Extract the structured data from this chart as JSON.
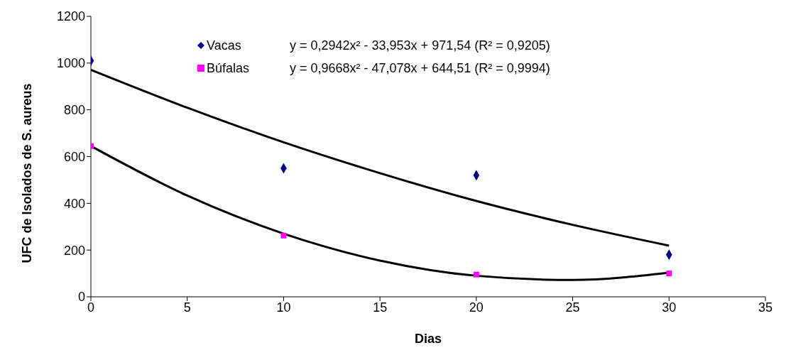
{
  "chart_data": {
    "type": "scatter",
    "xlabel": "Dias",
    "ylabel": "UFC de Isolados de S. aureus",
    "xlim": [
      0,
      35
    ],
    "xticks": [
      0,
      5,
      10,
      15,
      20,
      25,
      30,
      35
    ],
    "ylim": [
      0,
      1200
    ],
    "yticks": [
      0,
      200,
      400,
      600,
      800,
      1000,
      1200
    ],
    "legend": "top",
    "annotations": [
      "y = 0,2942x² - 33,953x + 971,54 (R² = 0,9205)",
      "y = 0,9668x² - 47,078x + 644,51 (R² = 0,9994)"
    ],
    "series": [
      {
        "name": "Vacas",
        "marker": "diamond",
        "color": "#000080",
        "x": [
          0,
          10,
          20,
          30
        ],
        "values": [
          1010,
          550,
          520,
          180
        ]
      },
      {
        "name": "Búfalas",
        "marker": "square",
        "color": "#ff00ff",
        "x": [
          0,
          10,
          20,
          30
        ],
        "values": [
          645,
          262,
          95,
          100
        ]
      },
      {
        "type": "line",
        "color": "#000000",
        "x": [
          0,
          5,
          10,
          15,
          20,
          25,
          30
        ],
        "values": [
          971,
          809,
          661,
          529,
          410,
          308,
          219
        ]
      },
      {
        "type": "line",
        "color": "#000000",
        "x": [
          0,
          5,
          10,
          15,
          20,
          25,
          30
        ],
        "values": [
          645,
          433,
          270,
          155,
          90,
          72,
          103
        ]
      }
    ]
  }
}
